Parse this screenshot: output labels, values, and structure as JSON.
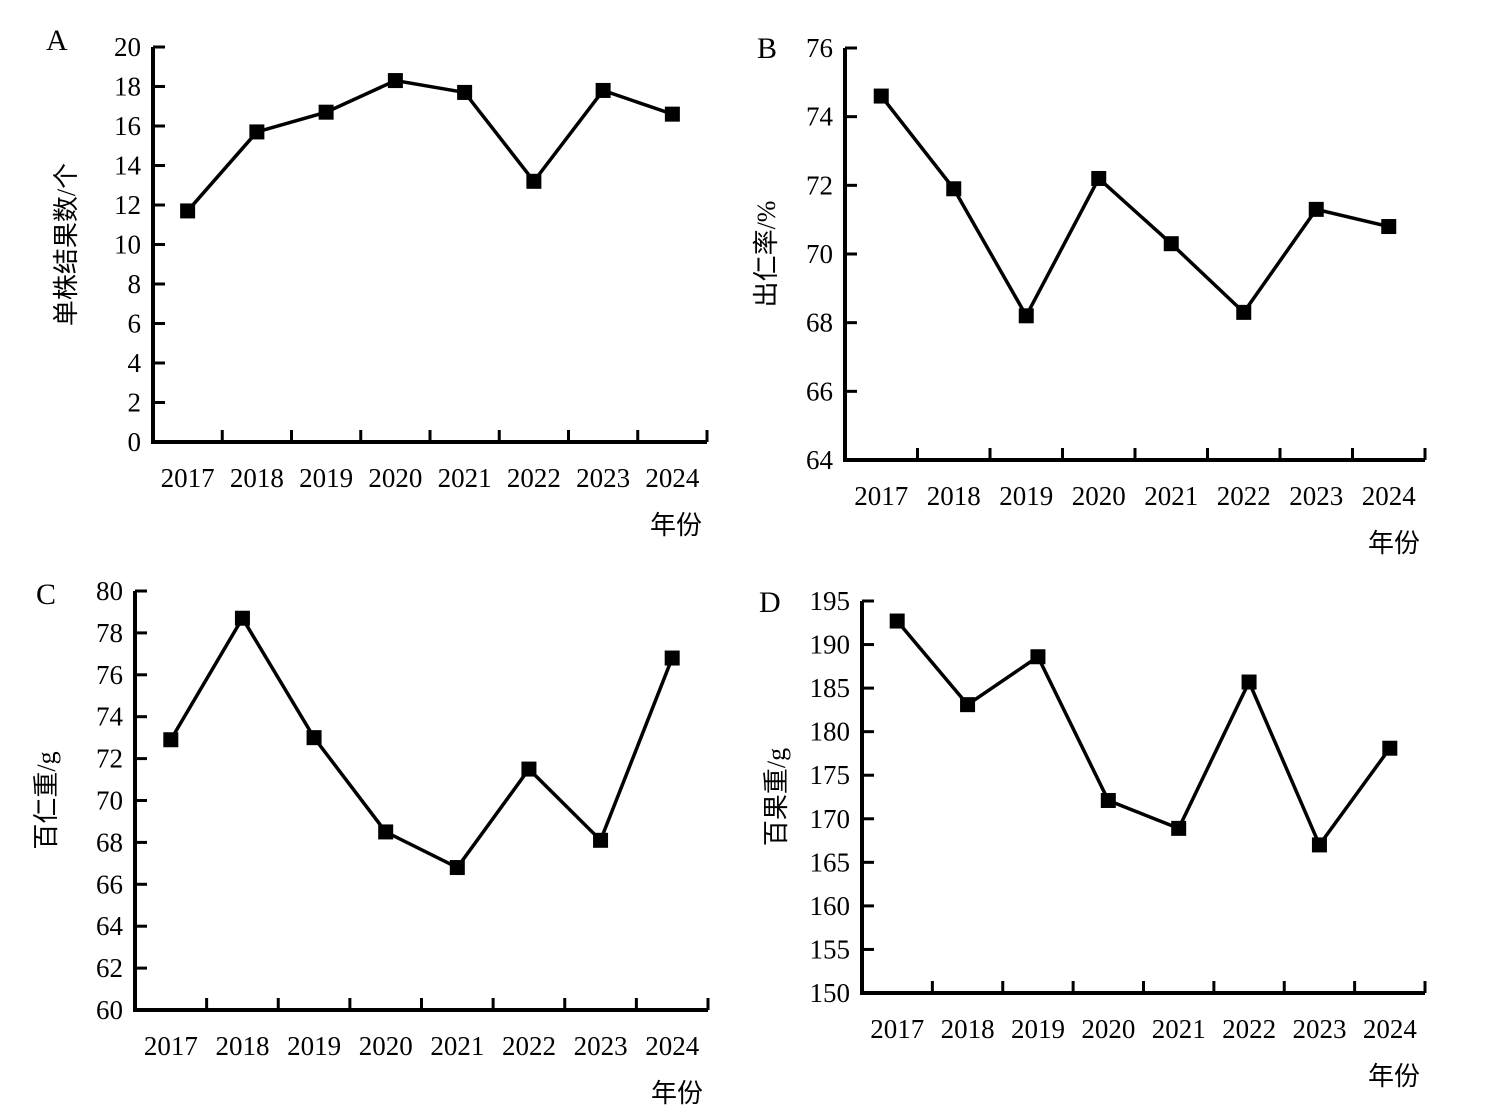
{
  "page": {
    "background": "#ffffff",
    "ink": "#000000",
    "marker_shape": "filled-square"
  },
  "chart_data": [
    {
      "type": "line",
      "panel_label": "A",
      "ylabel": "单株结果数/个",
      "xlabel": "年份",
      "categories": [
        "2017",
        "2018",
        "2019",
        "2020",
        "2021",
        "2022",
        "2023",
        "2024"
      ],
      "values": [
        11.7,
        15.7,
        16.7,
        18.3,
        17.7,
        13.2,
        17.8,
        16.6
      ],
      "ylim": [
        0,
        20
      ],
      "ytick_step": 2,
      "grid": "off",
      "legend": "none",
      "line_color": "#000000"
    },
    {
      "type": "line",
      "panel_label": "B",
      "ylabel": "出仁率/%",
      "xlabel": "年份",
      "categories": [
        "2017",
        "2018",
        "2019",
        "2020",
        "2021",
        "2022",
        "2023",
        "2024"
      ],
      "values": [
        74.6,
        71.9,
        68.2,
        72.2,
        70.3,
        68.3,
        71.3,
        70.8
      ],
      "ylim": [
        64,
        76
      ],
      "ytick_step": 2,
      "grid": "off",
      "legend": "none",
      "line_color": "#000000"
    },
    {
      "type": "line",
      "panel_label": "C",
      "ylabel": "百仁重/g",
      "xlabel": "年份",
      "categories": [
        "2017",
        "2018",
        "2019",
        "2020",
        "2021",
        "2022",
        "2023",
        "2024"
      ],
      "values": [
        72.9,
        78.7,
        73.0,
        68.5,
        66.8,
        71.5,
        68.1,
        76.8
      ],
      "ylim": [
        60,
        80
      ],
      "ytick_step": 2,
      "grid": "off",
      "legend": "none",
      "line_color": "#000000"
    },
    {
      "type": "line",
      "panel_label": "D",
      "ylabel": "百果重/g",
      "xlabel": "年份",
      "categories": [
        "2017",
        "2018",
        "2019",
        "2020",
        "2021",
        "2022",
        "2023",
        "2024"
      ],
      "values": [
        192.7,
        183.1,
        188.6,
        172.1,
        168.9,
        185.7,
        167.0,
        178.1
      ],
      "ylim": [
        150,
        195
      ],
      "ytick_step": 5,
      "grid": "off",
      "legend": "none",
      "line_color": "#000000"
    }
  ]
}
